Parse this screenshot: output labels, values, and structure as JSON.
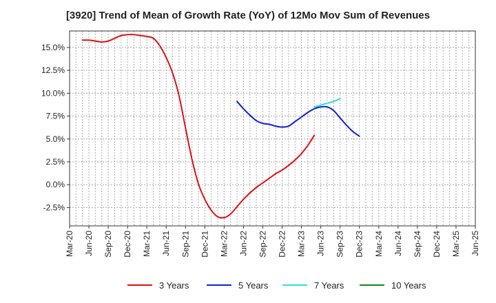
{
  "chart_data": {
    "type": "line",
    "title": "[3920]  Trend of Mean of Growth Rate (YoY) of 12Mo Mov Sum of Revenues",
    "xlabel": "",
    "ylabel": "",
    "x_ticks": [
      "Mar-20",
      "Jun-20",
      "Sep-20",
      "Dec-20",
      "Mar-21",
      "Jun-21",
      "Sep-21",
      "Dec-21",
      "Mar-22",
      "Jun-22",
      "Sep-22",
      "Dec-22",
      "Mar-23",
      "Jun-23",
      "Sep-23",
      "Dec-23",
      "Mar-24",
      "Jun-24",
      "Sep-24",
      "Dec-24",
      "Mar-25",
      "Jun-25"
    ],
    "y_ticks": [
      "-2.5%",
      "0.0%",
      "2.5%",
      "5.0%",
      "7.5%",
      "10.0%",
      "12.5%",
      "15.0%"
    ],
    "y_tick_values": [
      -2.5,
      0,
      2.5,
      5,
      7.5,
      10,
      12.5,
      15
    ],
    "ylim": [
      -4.5,
      16.8
    ],
    "grid": true,
    "legend_position": "bottom",
    "series": [
      {
        "name": "3 Years",
        "color": "#dd1111",
        "start_index": 2,
        "values": [
          15.8,
          15.8,
          15.7,
          15.6,
          15.7,
          16.0,
          16.3,
          16.4,
          16.4,
          16.3,
          16.2,
          16.0,
          15.2,
          13.9,
          12.2,
          9.7,
          6.2,
          2.8,
          0.1,
          -1.6,
          -2.8,
          -3.5,
          -3.6,
          -3.2,
          -2.4,
          -1.6,
          -0.9,
          -0.3,
          0.2,
          0.7,
          1.2,
          1.6,
          2.1,
          2.7,
          3.4,
          4.3,
          5.4
        ]
      },
      {
        "name": "5 Years",
        "color": "#1122cc",
        "start_index": 26,
        "values": [
          9.1,
          8.3,
          7.6,
          7.0,
          6.7,
          6.6,
          6.4,
          6.3,
          6.4,
          6.9,
          7.4,
          7.9,
          8.3,
          8.5,
          8.5,
          8.1,
          7.3,
          6.5,
          5.8,
          5.3
        ]
      },
      {
        "name": "7 Years",
        "color": "#33dddd",
        "start_index": 38,
        "values": [
          8.5,
          8.7,
          8.9,
          9.1,
          9.4
        ]
      },
      {
        "name": "10 Years",
        "color": "#118811",
        "start_index": 42,
        "values": []
      }
    ]
  }
}
